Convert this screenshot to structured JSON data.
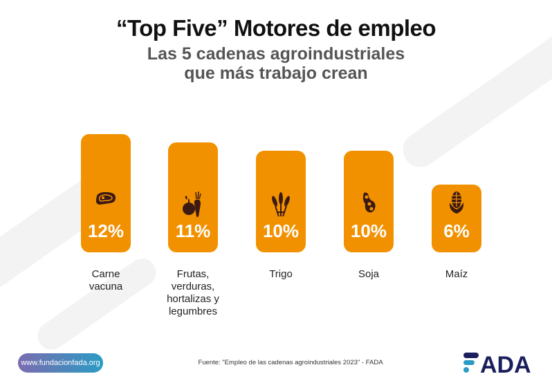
{
  "title": "“Top Five” Motores de empleo",
  "subtitle": "Las 5 cadenas agroindustriales que más trabajo crean",
  "footer": {
    "website": "www.fundacionfada.org",
    "source": "Fuente: \"Empleo de las cadenas agroindustriales 2023\" - FADA",
    "logo": "FADA"
  },
  "colors": {
    "bar": "#F29100",
    "icon": "#3B1A14",
    "logo": "#1B1F5E",
    "logo_accent": "#2A9BC4"
  },
  "chart_data": {
    "type": "bar",
    "title": "“Top Five” Motores de empleo",
    "categories": [
      "Carne vacuna",
      "Frutas, verduras, hortalizas y legumbres",
      "Trigo",
      "Soja",
      "Maíz"
    ],
    "values": [
      12,
      11,
      10,
      10,
      6
    ],
    "value_labels": [
      "12%",
      "11%",
      "10%",
      "10%",
      "6%"
    ],
    "icons": [
      "steak-icon",
      "fruit-vegetable-icon",
      "wheat-icon",
      "soy-icon",
      "corn-icon"
    ],
    "unit": "%",
    "ylim": [
      0,
      12
    ],
    "grid": false,
    "legend": "none"
  }
}
